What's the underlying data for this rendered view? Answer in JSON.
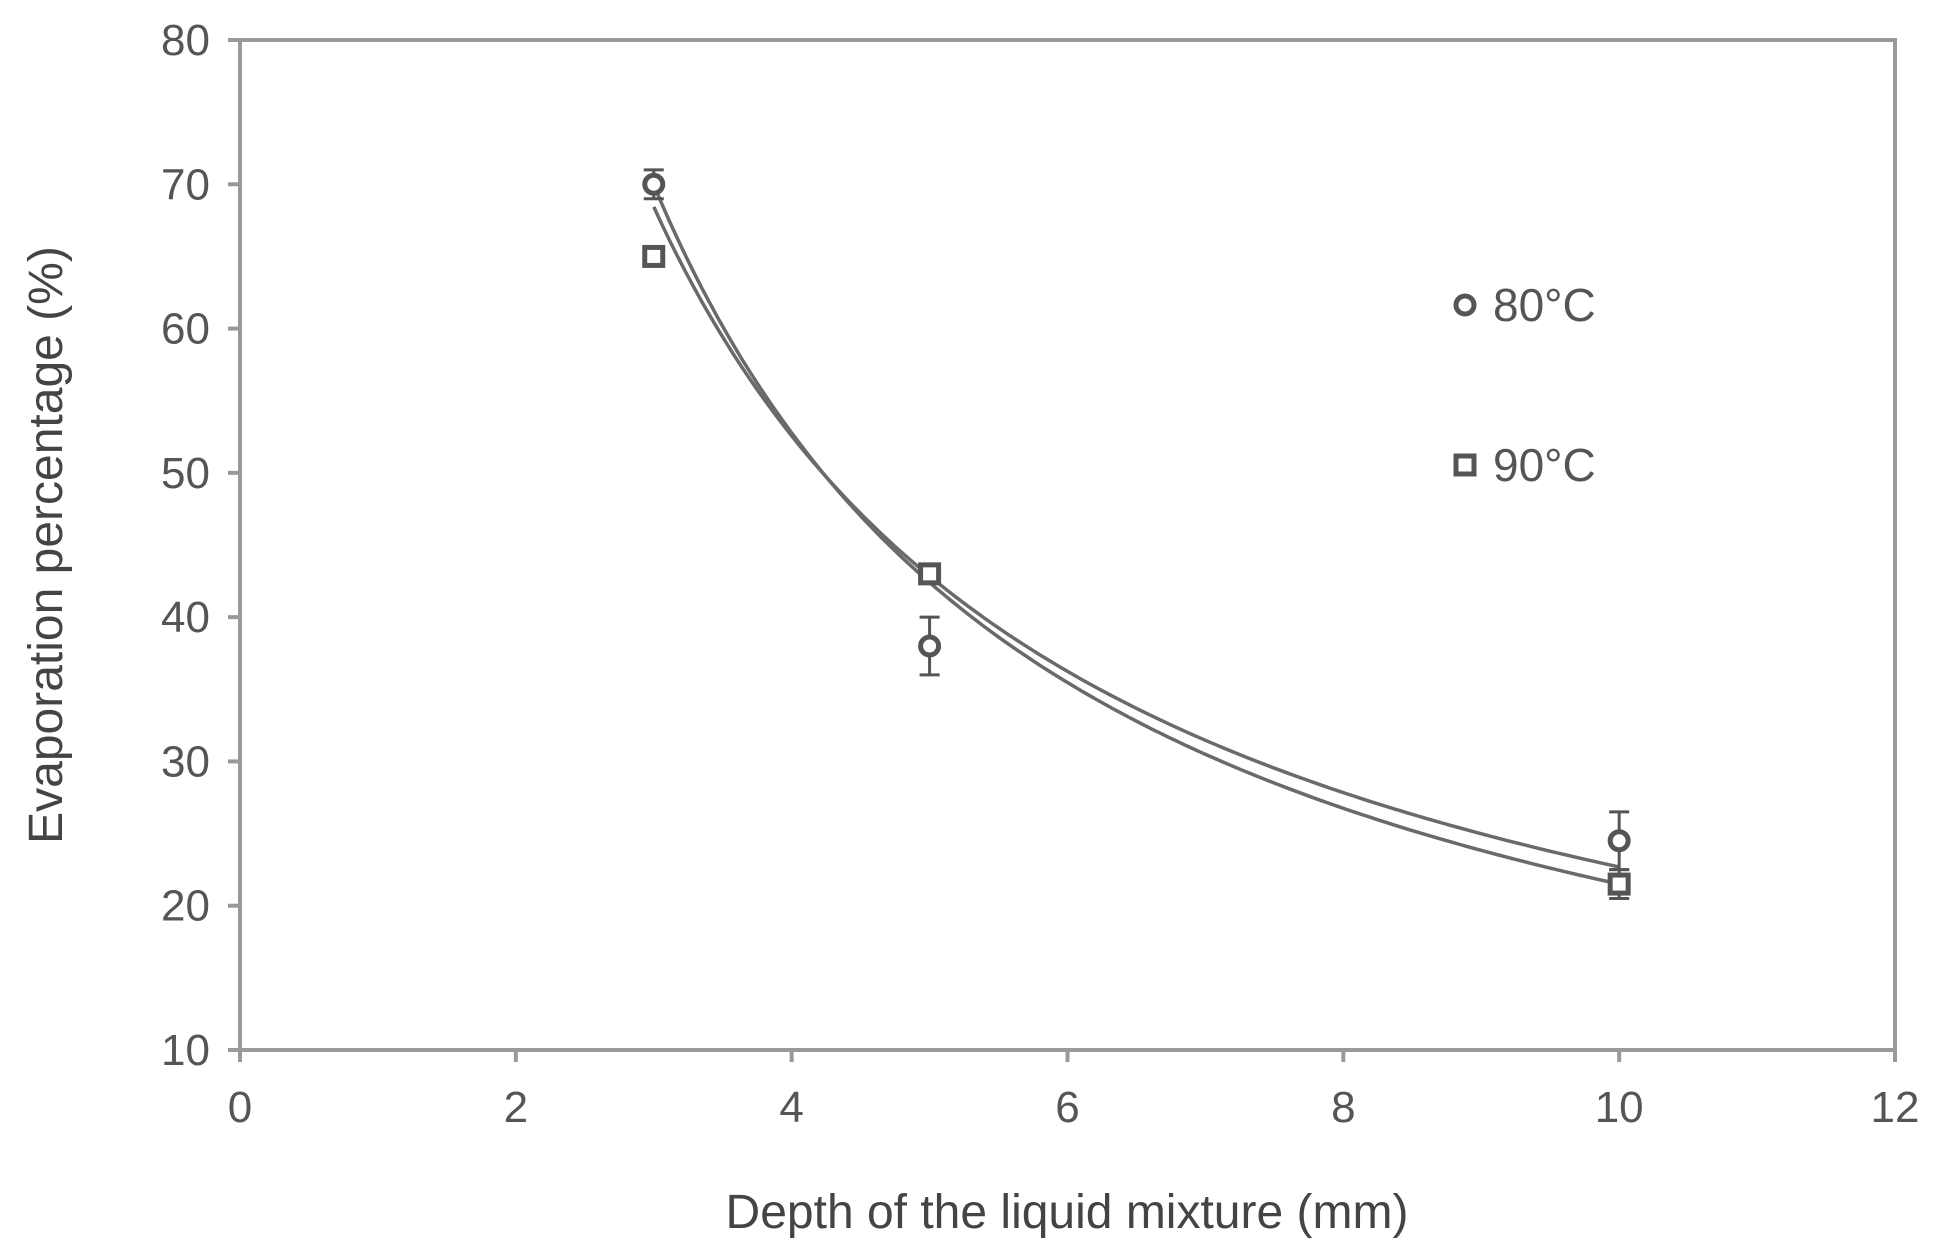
{
  "chart_data": {
    "type": "scatter",
    "title": "",
    "xlabel": "Depth of the liquid mixture (mm)",
    "ylabel": "Evaporation percentage (%)",
    "xlim": [
      0,
      12
    ],
    "ylim": [
      10,
      80
    ],
    "xticks": [
      0,
      2,
      4,
      6,
      8,
      10,
      12
    ],
    "yticks": [
      10,
      20,
      30,
      40,
      50,
      60,
      70,
      80
    ],
    "grid": false,
    "legend_position": "right",
    "series": [
      {
        "name": "80°C",
        "marker": "circle",
        "x": [
          3,
          5,
          10
        ],
        "y": [
          70,
          38,
          24.5
        ],
        "error": [
          1,
          2,
          2
        ],
        "fit": {
          "type": "power",
          "a": 205.3,
          "b": -0.98
        }
      },
      {
        "name": "90°C",
        "marker": "square",
        "x": [
          3,
          5,
          10
        ],
        "y": [
          65,
          43,
          21.5
        ],
        "error": [
          0.5,
          0.5,
          1
        ],
        "fit": {
          "type": "power",
          "a": 187.4,
          "b": -0.917
        }
      }
    ],
    "colors": {
      "axis": "#999999",
      "text": "#555555",
      "series": "#555555"
    }
  }
}
